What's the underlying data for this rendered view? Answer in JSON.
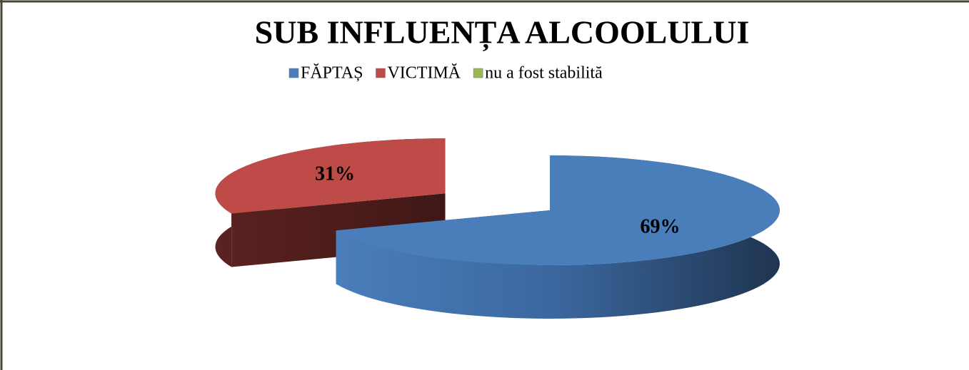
{
  "chart_data": {
    "type": "pie3d",
    "title": "SUB  INFLUENȚA ALCOOLULUI",
    "categories": [
      "FĂPTAȘ",
      "VICTIMĂ",
      "nu a fost stabilită"
    ],
    "values": [
      69,
      31,
      0
    ],
    "value_labels": [
      "69%",
      "31%",
      null
    ],
    "colors": [
      "#4a7ebb",
      "#be4b48",
      "#98b954"
    ],
    "legend": "top"
  }
}
